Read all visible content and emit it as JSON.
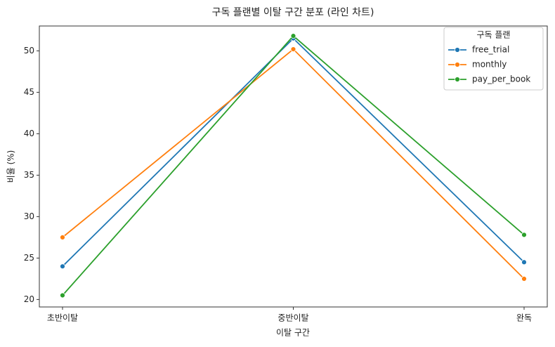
{
  "chart_data": {
    "type": "line",
    "title": "구독 플랜별 이탈 구간 분포 (라인 차트)",
    "x_label": "이탈 구간",
    "y_label": "비율 (%)",
    "categories": [
      "초반이탈",
      "중반이탈",
      "완독"
    ],
    "series": [
      {
        "name": "free_trial",
        "color": "#1f77b4",
        "values": [
          24.0,
          51.5,
          24.5
        ]
      },
      {
        "name": "monthly",
        "color": "#ff7f0e",
        "values": [
          27.5,
          50.2,
          22.5
        ]
      },
      {
        "name": "pay_per_book",
        "color": "#2ca02c",
        "values": [
          20.5,
          51.8,
          27.8
        ]
      }
    ],
    "ylim": [
      19.1,
      53.0
    ],
    "yticks": [
      20,
      25,
      30,
      35,
      40,
      45,
      50
    ],
    "legend_title": "구독 플랜",
    "legend": "upper right",
    "grid": false
  }
}
